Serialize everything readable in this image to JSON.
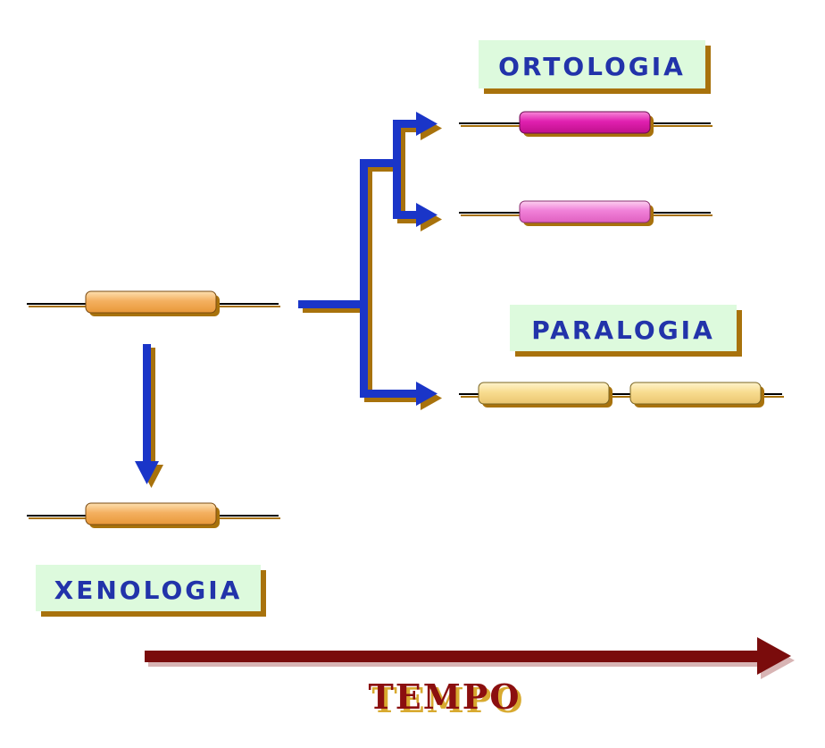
{
  "labels": {
    "ortologia": "ORTOLOGIA",
    "paralogia": "PARALOGIA",
    "xenologia": "XENOLOGIA",
    "tempo": "TEMPO"
  },
  "colors": {
    "label_box": "#ddfadd",
    "label_text": "#2233aa",
    "label_shadow": "#a8720c",
    "arrow_blue": "#1a35c8",
    "arrow_shadow": "#a8720c",
    "time_arrow": "#7a0c0c",
    "gene_orange": "#f4b060",
    "gene_magenta": "#e020b0",
    "gene_pink": "#f080d8",
    "gene_yellow": "#f8dc90",
    "dna_line": "#000000"
  }
}
